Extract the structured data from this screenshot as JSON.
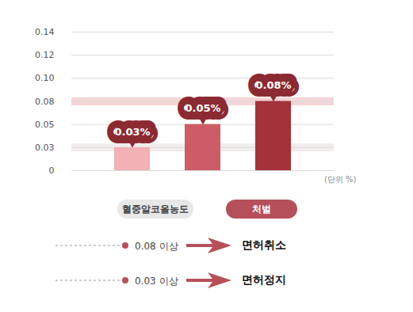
{
  "chart_data": {
    "type": "bar",
    "categories": [
      null,
      null,
      null
    ],
    "values": [
      0.03,
      0.05,
      0.08
    ],
    "value_labels": [
      "0.03%",
      "0.05%",
      "0.08%"
    ],
    "colors": [
      "#f2b1b5",
      "#cc5d66",
      "#a3323b"
    ],
    "ylim": [
      0,
      0.14
    ],
    "yticks": [
      0,
      0.03,
      0.05,
      0.08,
      {
        "value": 0.1,
        "label": "0.10"
      },
      0.12,
      0.14
    ],
    "grid": true,
    "data_labels": true,
    "unit_label": "(단위 %)",
    "legend_items": [
      {
        "label": "혈중알코올농도",
        "color": "#e8e8e8"
      },
      {
        "label": "처벌",
        "color": "#b5505a"
      }
    ],
    "thresholds": [
      {
        "value": 0.08,
        "condition": "이상",
        "penalty": "면허취소",
        "color": "#f5d5d7"
      },
      {
        "value": 0.03,
        "condition": "이상",
        "penalty": "면허정지",
        "color": "#f1eded"
      }
    ]
  }
}
